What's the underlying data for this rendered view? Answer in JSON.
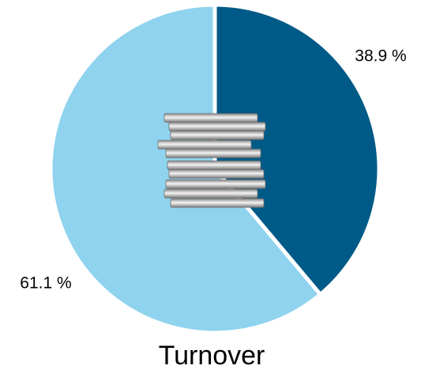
{
  "chart_data": {
    "type": "pie",
    "title": "Turnover",
    "categories": [
      null,
      null
    ],
    "values": [
      38.9,
      61.1
    ],
    "value_labels": [
      "38.9 %",
      "61.1 %"
    ],
    "colors": [
      "#005a87",
      "#8fd3ee"
    ]
  }
}
